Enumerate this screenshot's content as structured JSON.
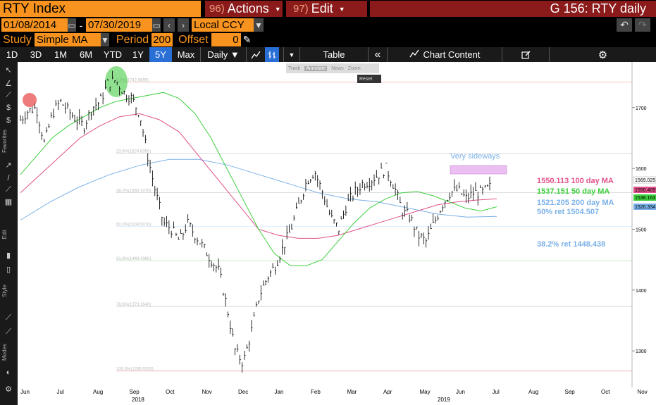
{
  "header": {
    "ticker": "RTY Index",
    "actions_num": "96)",
    "actions_label": "Actions",
    "edit_num": "97)",
    "edit_label": "Edit",
    "title": "G 156: RTY daily"
  },
  "dates": {
    "start": "01/08/2014",
    "end": "07/30/2019",
    "dash": "-",
    "currency": "Local CCY"
  },
  "study": {
    "study_label": "Study",
    "study_value": "Simple MA",
    "period_label": "Period",
    "period_value": "200",
    "offset_label": "Offset",
    "offset_value": "0"
  },
  "toolbar": {
    "ranges": [
      "1D",
      "3D",
      "1M",
      "6M",
      "YTD",
      "1Y",
      "5Y",
      "Max"
    ],
    "active_range": "5Y",
    "frequency": "Daily ▼",
    "table": "Table",
    "chart_content": "Chart Content"
  },
  "mini_toolbar": {
    "track": "Track",
    "annotate": "Annotate",
    "news": "News",
    "zoom": "Zoom",
    "reset": "Reset"
  },
  "left_labels": {
    "favorites": "Favorites",
    "edit": "Edit",
    "style": "Style",
    "modes": "Modes"
  },
  "annotations": {
    "sideways": "Very sideways",
    "ma100": "1550.113 100 day MA",
    "ma50": "1537.151 50 day MA",
    "ma200": "1521.205 200 day MA",
    "ret50": "50% ret 1504.507",
    "ret38": "38.2% ret 1448.438"
  },
  "price_tags": {
    "last": "1569.025",
    "ma100": "1550.409",
    "ma50": "1538.163",
    "ma200": "1520.334"
  },
  "fib_labels": [
    "0.0%(1742.0895)",
    "23.6%(1624.8350)",
    "38.2%(1560.1070)",
    "50.0%(1504.5070)",
    "61.8%(1448.4380)",
    "78.6%(1373.1640)",
    "100.0%(1266.9250)"
  ],
  "colors": {
    "orange": "#f7931e",
    "red_tab": "#8b1a1a",
    "active_blue": "#2a6fd6",
    "ma50": "#3ecf3e",
    "ma100": "#e0508a",
    "ma200": "#7ab0e8",
    "sideways_box": "#e8b4f0"
  },
  "chart_data": {
    "type": "line",
    "title": "RTY daily",
    "y_ticks": [
      1300,
      1400,
      1500,
      1600,
      1700
    ],
    "ylim": [
      1240,
      1775
    ],
    "x_labels": [
      "Jun",
      "Jul",
      "Aug",
      "Sep",
      "Oct",
      "Nov",
      "Dec",
      "Jan",
      "Feb",
      "Mar",
      "Apr",
      "May",
      "Jun",
      "Jul",
      "Aug",
      "Sep",
      "Oct",
      "Nov"
    ],
    "year_labels": [
      "2018",
      "2019"
    ],
    "series": [
      {
        "name": "Price",
        "values": [
          1680,
          1695,
          1700,
          1640,
          1690,
          1710,
          1695,
          1680,
          1670,
          1700,
          1710,
          1740,
          1745,
          1725,
          1715,
          1690,
          1620,
          1560,
          1510,
          1500,
          1480,
          1510,
          1490,
          1470,
          1450,
          1430,
          1370,
          1300,
          1280,
          1330,
          1390,
          1420,
          1440,
          1470,
          1500,
          1540,
          1580,
          1595,
          1560,
          1520,
          1500,
          1540,
          1560,
          1575,
          1580,
          1590,
          1600,
          1570,
          1530,
          1520,
          1490,
          1480,
          1510,
          1540,
          1560,
          1565,
          1550,
          1560,
          1560,
          1569
        ]
      },
      {
        "name": "50 day MA",
        "values": [
          1590,
          1620,
          1650,
          1670,
          1685,
          1700,
          1710,
          1715,
          1720,
          1725,
          1715,
          1690,
          1650,
          1600,
          1550,
          1500,
          1460,
          1440,
          1440,
          1450,
          1480,
          1510,
          1535,
          1550,
          1560,
          1562,
          1555,
          1545,
          1535,
          1530,
          1537
        ]
      },
      {
        "name": "100 day MA",
        "values": [
          1560,
          1590,
          1620,
          1650,
          1670,
          1685,
          1690,
          1680,
          1660,
          1620,
          1580,
          1540,
          1500,
          1490,
          1485,
          1485,
          1490,
          1500,
          1510,
          1520,
          1530,
          1540,
          1545,
          1548,
          1550
        ]
      },
      {
        "name": "200 day MA",
        "values": [
          1515,
          1545,
          1570,
          1590,
          1605,
          1615,
          1615,
          1605,
          1590,
          1575,
          1560,
          1550,
          1545,
          1535,
          1525,
          1520,
          1521
        ]
      }
    ]
  }
}
